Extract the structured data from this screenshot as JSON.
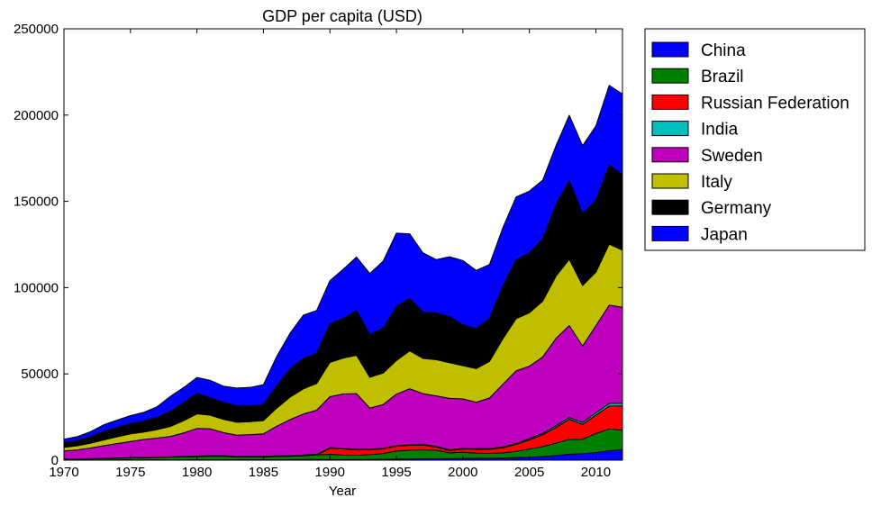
{
  "chart_data": {
    "type": "area",
    "title": "GDP per capita (USD)",
    "xlabel": "Year",
    "ylabel": "",
    "xlim": [
      1970,
      2012
    ],
    "ylim": [
      0,
      250000
    ],
    "xticks": [
      1970,
      1975,
      1980,
      1985,
      1990,
      1995,
      2000,
      2005,
      2010
    ],
    "yticks": [
      0,
      50000,
      100000,
      150000,
      200000,
      250000
    ],
    "xtick_labels": [
      "1970",
      "1975",
      "1980",
      "1985",
      "1990",
      "1995",
      "2000",
      "2005",
      "2010"
    ],
    "ytick_labels": [
      "0",
      "50000",
      "100000",
      "150000",
      "200000",
      "250000"
    ],
    "stacked": true,
    "grid": false,
    "legend_position": "outside-right",
    "x": [
      1970,
      1971,
      1972,
      1973,
      1974,
      1975,
      1976,
      1977,
      1978,
      1979,
      1980,
      1981,
      1982,
      1983,
      1984,
      1985,
      1986,
      1987,
      1988,
      1989,
      1990,
      1991,
      1992,
      1993,
      1994,
      1995,
      1996,
      1997,
      1998,
      1999,
      2000,
      2001,
      2002,
      2003,
      2004,
      2005,
      2006,
      2007,
      2008,
      2009,
      2010,
      2011,
      2012
    ],
    "series": [
      {
        "name": "China",
        "color": "#0000ff",
        "values": [
          100,
          100,
          130,
          150,
          160,
          180,
          160,
          190,
          160,
          180,
          200,
          200,
          210,
          300,
          300,
          290,
          280,
          300,
          370,
          400,
          300,
          330,
          360,
          370,
          470,
          600,
          700,
          770,
          820,
          860,
          950,
          1040,
          1130,
          1270,
          1490,
          1730,
          2070,
          2650,
          3440,
          3740,
          4430,
          5450,
          6090
        ]
      },
      {
        "name": "Brazil",
        "color": "#008000",
        "values": [
          440,
          500,
          580,
          750,
          920,
          1100,
          1300,
          1400,
          1600,
          1800,
          1900,
          2100,
          2100,
          1500,
          1600,
          1600,
          1900,
          2000,
          2200,
          2700,
          3100,
          2700,
          2500,
          2800,
          3400,
          4700,
          5100,
          5200,
          4900,
          3400,
          3700,
          3100,
          2800,
          3000,
          3600,
          4700,
          5800,
          7200,
          8600,
          8400,
          11000,
          12600,
          11300
        ]
      },
      {
        "name": "Russian Federation",
        "color": "#ff0000",
        "values": [
          0,
          0,
          0,
          0,
          0,
          0,
          0,
          0,
          0,
          0,
          0,
          0,
          0,
          0,
          0,
          0,
          0,
          0,
          0,
          0,
          3500,
          3500,
          3100,
          2900,
          2700,
          2700,
          2800,
          2800,
          1800,
          1300,
          1800,
          2100,
          2400,
          2900,
          4100,
          5300,
          6900,
          9100,
          11700,
          8600,
          10700,
          13300,
          14100
        ]
      },
      {
        "name": "India",
        "color": "#00bfbf",
        "values": [
          110,
          120,
          120,
          140,
          160,
          160,
          160,
          180,
          210,
          220,
          270,
          280,
          280,
          290,
          280,
          300,
          300,
          340,
          360,
          350,
          380,
          310,
          320,
          300,
          350,
          380,
          400,
          410,
          410,
          440,
          450,
          460,
          480,
          560,
          640,
          730,
          810,
          1020,
          1000,
          1100,
          1370,
          1500,
          1500
        ]
      },
      {
        "name": "Sweden",
        "color": "#bf00bf",
        "values": [
          4700,
          5200,
          6200,
          7400,
          8400,
          9400,
          10400,
          11000,
          11800,
          13600,
          16000,
          15600,
          13400,
          12400,
          12600,
          13100,
          17200,
          20900,
          23800,
          25500,
          29500,
          31500,
          32300,
          23800,
          25300,
          29900,
          32400,
          29400,
          29300,
          29800,
          28600,
          26900,
          29200,
          36200,
          41900,
          42000,
          44200,
          50600,
          53300,
          44300,
          50400,
          57000,
          55600
        ]
      },
      {
        "name": "Italy",
        "color": "#bfbf00",
        "values": [
          2100,
          2400,
          2800,
          3300,
          3900,
          4400,
          4300,
          4900,
          5800,
          7100,
          8500,
          7900,
          7700,
          7500,
          7500,
          7700,
          10500,
          13000,
          14600,
          15500,
          19900,
          20800,
          22200,
          17900,
          18300,
          19500,
          22000,
          20400,
          21000,
          20700,
          19300,
          19500,
          21300,
          26400,
          30300,
          31000,
          32400,
          36100,
          38400,
          35100,
          31100,
          35400,
          33100
        ]
      },
      {
        "name": "Germany",
        "color": "#000000",
        "values": [
          2700,
          3000,
          3800,
          4900,
          5400,
          6000,
          6300,
          7100,
          8800,
          10400,
          11800,
          10000,
          9700,
          9600,
          9100,
          9300,
          13100,
          16300,
          17700,
          17500,
          22300,
          23000,
          26000,
          24700,
          26000,
          31300,
          30400,
          26800,
          27100,
          26700,
          23600,
          23200,
          24900,
          30400,
          34100,
          34700,
          36000,
          41600,
          45600,
          41700,
          41600,
          45800,
          43900
        ]
      },
      {
        "name": "Japan",
        "color": "#0000ff",
        "values": [
          2000,
          2300,
          2900,
          3900,
          4300,
          4600,
          5100,
          6200,
          8600,
          8800,
          9300,
          10200,
          9500,
          10200,
          10800,
          11500,
          16900,
          20700,
          25000,
          24800,
          25100,
          28500,
          31000,
          35400,
          38800,
          42500,
          37400,
          34400,
          30900,
          34700,
          37300,
          33700,
          31200,
          33900,
          36400,
          35800,
          34100,
          34000,
          37900,
          39300,
          43100,
          46200,
          46700
        ]
      }
    ]
  }
}
